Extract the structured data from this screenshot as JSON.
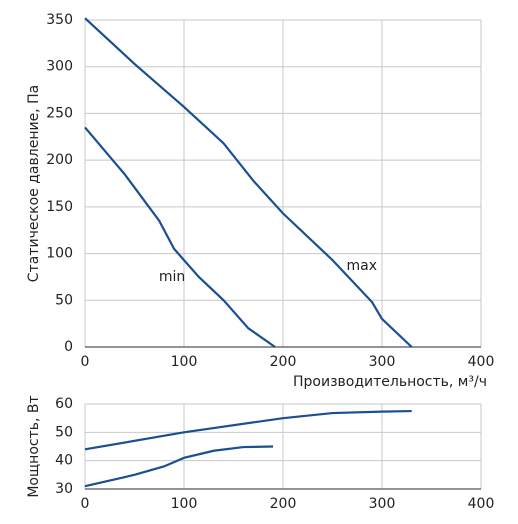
{
  "chart_data": [
    {
      "type": "line",
      "x_label": "Производительность, м³/ч",
      "y_label": "Статическое давление, Па",
      "xlim": [
        0,
        400
      ],
      "xticks": [
        0,
        100,
        200,
        300,
        400
      ],
      "ylim": [
        0,
        350
      ],
      "yticks": [
        0,
        50,
        100,
        150,
        200,
        250,
        300,
        350
      ],
      "grid": true,
      "series": [
        {
          "name": "max",
          "color": "#1b4f91",
          "x": [
            0,
            50,
            100,
            140,
            170,
            200,
            250,
            290,
            300,
            330
          ],
          "values": [
            352,
            303,
            257,
            218,
            178,
            143,
            93,
            48,
            30,
            0
          ]
        },
        {
          "name": "min",
          "color": "#1b4f91",
          "x": [
            0,
            40,
            75,
            90,
            115,
            140,
            165,
            192
          ],
          "values": [
            235,
            185,
            135,
            105,
            75,
            50,
            20,
            0
          ]
        }
      ]
    },
    {
      "type": "line",
      "y_label": "Мощность, Вт",
      "xlim": [
        0,
        400
      ],
      "xticks": [
        0,
        100,
        200,
        300,
        400
      ],
      "ylim": [
        30,
        60
      ],
      "yticks": [
        30,
        40,
        50,
        60
      ],
      "grid": true,
      "series": [
        {
          "color": "#1b4f91",
          "x": [
            0,
            100,
            200,
            250,
            300,
            330
          ],
          "values": [
            44,
            50,
            55,
            56.8,
            57.3,
            57.5
          ]
        },
        {
          "color": "#1b4f91",
          "x": [
            0,
            50,
            80,
            100,
            130,
            160,
            190
          ],
          "values": [
            31,
            35,
            38,
            41,
            43.5,
            44.8,
            45
          ]
        }
      ]
    }
  ]
}
